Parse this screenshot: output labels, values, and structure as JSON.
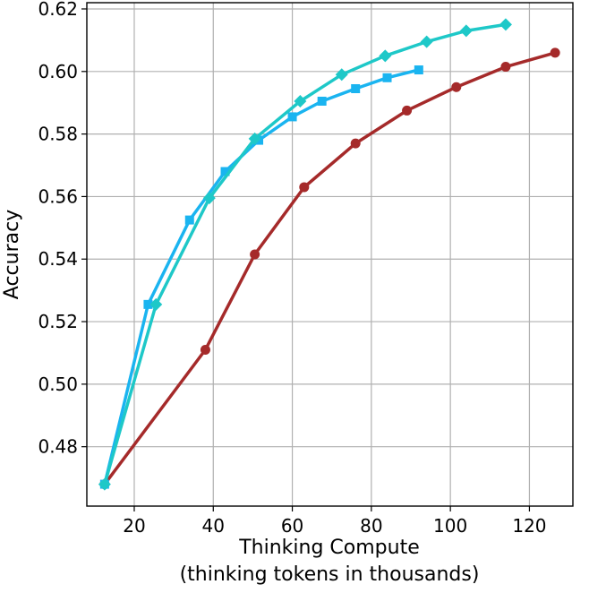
{
  "chart_data": {
    "type": "line",
    "title": "",
    "xlabel_line1": "Thinking Compute",
    "xlabel_line2": "(thinking tokens in thousands)",
    "ylabel": "Accuracy",
    "xlim": [
      8,
      131
    ],
    "ylim": [
      0.461,
      0.622
    ],
    "xticks": [
      20,
      40,
      60,
      80,
      100,
      120
    ],
    "yticks": [
      0.48,
      0.5,
      0.52,
      0.54,
      0.56,
      0.58,
      0.6,
      0.62
    ],
    "grid": true,
    "legend": "none",
    "series": [
      {
        "color": "#a52a2a",
        "marker": "circle",
        "x": [
          12.5,
          38,
          50.5,
          63,
          76,
          89,
          101.5,
          114,
          126.5
        ],
        "y": [
          0.468,
          0.511,
          0.5415,
          0.563,
          0.577,
          0.5875,
          0.595,
          0.6015,
          0.606
        ]
      },
      {
        "color": "#1ab4f0",
        "marker": "square",
        "x": [
          12.5,
          23.5,
          34,
          43,
          51.5,
          60,
          67.5,
          76,
          84,
          92
        ],
        "y": [
          0.468,
          0.5255,
          0.5525,
          0.568,
          0.578,
          0.5855,
          0.5905,
          0.5945,
          0.598,
          0.6005
        ]
      },
      {
        "color": "#1ec8c8",
        "marker": "diamond",
        "x": [
          12.5,
          25.5,
          39,
          50.5,
          62,
          72.5,
          83.5,
          94,
          104,
          114
        ],
        "y": [
          0.468,
          0.5255,
          0.5595,
          0.5785,
          0.5905,
          0.599,
          0.605,
          0.6095,
          0.613,
          0.615
        ]
      }
    ]
  }
}
